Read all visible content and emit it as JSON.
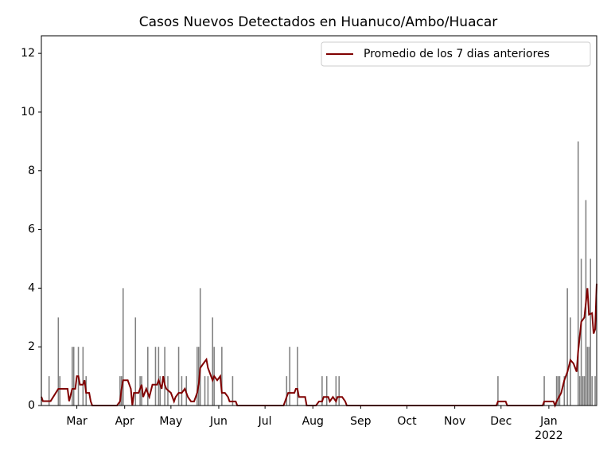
{
  "chart_data": {
    "type": "bar",
    "title": "Casos Nuevos Detectados en Huanuco/Ambo/Huacar",
    "xlim": [
      -23,
      337
    ],
    "ylim": [
      0,
      12.6
    ],
    "xticks": [
      {
        "value": 0,
        "label": "Mar"
      },
      {
        "value": 31,
        "label": "Apr"
      },
      {
        "value": 61,
        "label": "May"
      },
      {
        "value": 92,
        "label": "Jun"
      },
      {
        "value": 122,
        "label": "Jul"
      },
      {
        "value": 153,
        "label": "Aug"
      },
      {
        "value": 184,
        "label": "Sep"
      },
      {
        "value": 214,
        "label": "Oct"
      },
      {
        "value": 245,
        "label": "Nov"
      },
      {
        "value": 275,
        "label": "Dec"
      },
      {
        "value": 306,
        "label": "Jan\n2022"
      }
    ],
    "yticks": [
      0,
      2,
      4,
      6,
      8,
      10,
      12
    ],
    "legend": "upper right",
    "series": [
      {
        "type": "bar",
        "color": "#808080",
        "x": [
          -18,
          -12,
          -11,
          -3,
          -2,
          1,
          4,
          6,
          28,
          29,
          30,
          38,
          41,
          42,
          46,
          51,
          53,
          54,
          57,
          59,
          66,
          68,
          71,
          78,
          79,
          80,
          83,
          85,
          88,
          89,
          94,
          101,
          136,
          138,
          143,
          159,
          162,
          168,
          170,
          273,
          303,
          311,
          312,
          313,
          316,
          318,
          320,
          325,
          326,
          327,
          328,
          329,
          330,
          331,
          332,
          333,
          334,
          336
        ],
        "values": [
          1,
          3,
          1,
          2,
          2,
          2,
          2,
          1,
          1,
          1,
          4,
          3,
          1,
          1,
          2,
          2,
          2,
          1,
          2,
          1,
          2,
          1,
          1,
          2,
          2,
          4,
          1,
          1,
          3,
          2,
          2,
          1,
          1,
          2,
          2,
          1,
          1,
          1,
          1,
          1,
          1,
          1,
          1,
          1,
          1,
          4,
          3,
          9,
          1,
          5,
          1,
          1,
          7,
          2,
          2,
          5,
          1,
          1
        ]
      },
      {
        "type": "line",
        "name": "Promedio de los 7 dias anteriores",
        "color": "#800000",
        "x": [
          -23,
          -22,
          -17,
          -12,
          -6,
          -5,
          -3,
          -1,
          0,
          1,
          2,
          4,
          5,
          6,
          8,
          9,
          10,
          26,
          28,
          29,
          30,
          33,
          35,
          36,
          37,
          40,
          42,
          43,
          45,
          47,
          49,
          52,
          53,
          55,
          56,
          57,
          58,
          61,
          63,
          64,
          66,
          68,
          70,
          72,
          74,
          76,
          78,
          79,
          80,
          82,
          84,
          85,
          87,
          88,
          89,
          91,
          93,
          94,
          96,
          98,
          99,
          103,
          104,
          134,
          135,
          136,
          137,
          141,
          142,
          143,
          144,
          148,
          149,
          155,
          157,
          159,
          160,
          163,
          164,
          166,
          168,
          169,
          172,
          174,
          175,
          272,
          273,
          278,
          279,
          302,
          303,
          309,
          310,
          311,
          314,
          316,
          318,
          320,
          322,
          324,
          325,
          327,
          329,
          331,
          332,
          334,
          335,
          336,
          337
        ],
        "values": [
          0.3,
          0.15,
          0.15,
          0.57,
          0.57,
          0.15,
          0.57,
          0.57,
          1.0,
          1.0,
          0.71,
          0.71,
          0.86,
          0.43,
          0.43,
          0.14,
          0,
          0,
          0.14,
          0.57,
          0.86,
          0.86,
          0.57,
          0,
          0.43,
          0.43,
          0.71,
          0.29,
          0.57,
          0.29,
          0.71,
          0.71,
          0.86,
          0.57,
          1.0,
          0.71,
          0.57,
          0.43,
          0.14,
          0.29,
          0.43,
          0.43,
          0.57,
          0.29,
          0.14,
          0.14,
          0.43,
          0.71,
          1.28,
          1.43,
          1.57,
          1.28,
          1.0,
          0.86,
          1.0,
          0.86,
          1.0,
          0.43,
          0.43,
          0.29,
          0.14,
          0.14,
          0,
          0,
          0.14,
          0.29,
          0.43,
          0.43,
          0.57,
          0.57,
          0.29,
          0.29,
          0,
          0,
          0.14,
          0.14,
          0.29,
          0.29,
          0.14,
          0.29,
          0.14,
          0.29,
          0.29,
          0.14,
          0,
          0,
          0.14,
          0.14,
          0,
          0,
          0.14,
          0.14,
          0,
          0.14,
          0.43,
          0.86,
          1.14,
          1.55,
          1.43,
          1.15,
          1.85,
          2.85,
          3.0,
          4.0,
          3.1,
          3.15,
          2.45,
          2.6,
          4.15
        ]
      }
    ]
  }
}
